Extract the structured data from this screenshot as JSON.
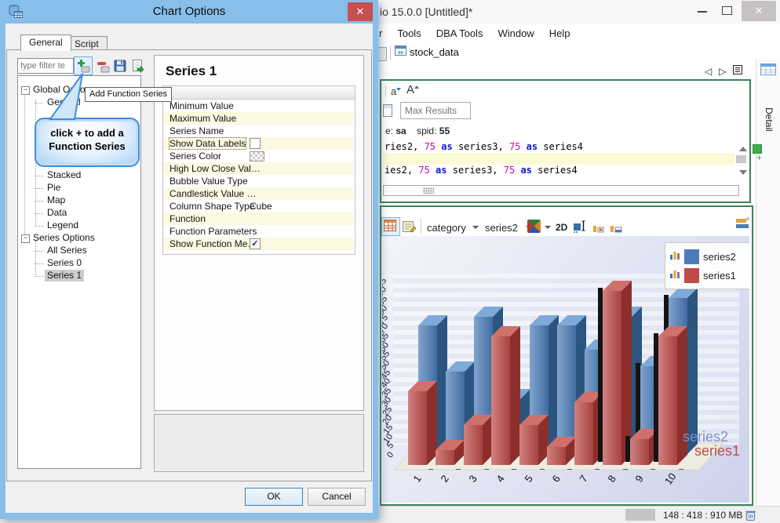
{
  "app": {
    "title": "io 15.0.0 [Untitled]*",
    "menus": [
      "r",
      "Tools",
      "DBA Tools",
      "Window",
      "Help"
    ],
    "tab_label": "stock_data",
    "detail_label": "Detail",
    "editor": {
      "font_small": "a",
      "font_big": "A",
      "max_results_placeholder": "Max Results",
      "session": {
        "prefix": "e:",
        "user": "sa",
        "spid_label": "spid:",
        "spid": "55"
      },
      "sql_lines": [
        {
          "highlight": false,
          "tokens": [
            [
              "ries2, ",
              "p"
            ],
            [
              "75",
              "n"
            ],
            [
              " ",
              "p"
            ],
            [
              "as",
              "k"
            ],
            [
              " series3, ",
              "p"
            ],
            [
              "75",
              "n"
            ],
            [
              " ",
              "p"
            ],
            [
              "as",
              "k"
            ],
            [
              " series4",
              "p"
            ]
          ]
        },
        {
          "highlight": true,
          "tokens": []
        },
        {
          "highlight": false,
          "tokens": [
            [
              "ies2, ",
              "p"
            ],
            [
              "75",
              "n"
            ],
            [
              " ",
              "p"
            ],
            [
              "as",
              "k"
            ],
            [
              " series3, ",
              "p"
            ],
            [
              "75",
              "n"
            ],
            [
              " ",
              "p"
            ],
            [
              "as",
              "k"
            ],
            [
              " series4",
              "p"
            ]
          ]
        }
      ]
    },
    "chart_toolbar": {
      "category": "category",
      "series": "series2",
      "mode2d": "2D"
    },
    "side_labels": {
      "series2": "series2",
      "series1": "series1",
      "series2_color": "#7D8FC5",
      "series1_color": "#BE4F4A"
    },
    "status": {
      "memory": "148 : 418 : 910 MB"
    }
  },
  "dialog": {
    "title": "Chart Options",
    "tabs": [
      {
        "label": "General"
      },
      {
        "label": "Script"
      }
    ],
    "filter_placeholder": "type filter te",
    "tooltip": "Add Function Series",
    "callout": {
      "line1": "click + to add a",
      "line2": "Function Series"
    },
    "tree": [
      {
        "label": "Global Options",
        "level": 0,
        "expander": true
      },
      {
        "label": "General",
        "level": 1
      },
      {
        "gap": true
      },
      {
        "label": "Stacked",
        "level": 1
      },
      {
        "label": "Pie",
        "level": 1
      },
      {
        "label": "Map",
        "level": 1
      },
      {
        "label": "Data",
        "level": 1
      },
      {
        "label": "Legend",
        "level": 1
      },
      {
        "label": "Series Options",
        "level": 0,
        "expander": true
      },
      {
        "label": "All Series",
        "level": 1
      },
      {
        "label": "Series 0",
        "level": 1
      },
      {
        "label": "Series 1",
        "level": 1,
        "selected": true
      }
    ],
    "panel": {
      "title": "Series 1",
      "properties": [
        {
          "name": "Minimum Value",
          "value": ""
        },
        {
          "name": "Maximum Value",
          "value": ""
        },
        {
          "name": "Series Name",
          "value": ""
        },
        {
          "name": "Show Data Labels",
          "type": "checkbox",
          "checked": false,
          "focused": true
        },
        {
          "name": "Series Color",
          "type": "swatch"
        },
        {
          "name": "High Low Close Val…",
          "value": ""
        },
        {
          "name": "Bubble Value Type",
          "value": ""
        },
        {
          "name": "Candlestick Value …",
          "value": ""
        },
        {
          "name": "Column Shape Type",
          "value": "Cube"
        },
        {
          "name": "Function",
          "value": ""
        },
        {
          "name": "Function Parameters",
          "value": ""
        },
        {
          "name": "Show Function Me…",
          "type": "checkbox",
          "checked": true
        }
      ]
    },
    "buttons": {
      "ok": "OK",
      "cancel": "Cancel"
    }
  },
  "chart_data": {
    "type": "bar",
    "projection": "3d",
    "title": "",
    "xlabel": "",
    "ylabel": "",
    "categories": [
      "1",
      "2",
      "3",
      "4",
      "5",
      "6",
      "7",
      "8",
      "9",
      "10"
    ],
    "series": [
      {
        "name": "series2",
        "color": "#4A7CB8",
        "color_top": "#7FA9D8",
        "color_side": "#2B5581",
        "values": [
          70,
          45,
          75,
          30,
          70,
          70,
          57,
          75,
          48,
          85
        ]
      },
      {
        "name": "series1",
        "color": "#BE4B48",
        "color_top": "#D0706B",
        "color_side": "#8C2F2C",
        "values": [
          40,
          8,
          22,
          70,
          22,
          10,
          34,
          95,
          14,
          70
        ]
      }
    ],
    "ylim": [
      0,
      95
    ],
    "ytick": 5,
    "grid": true,
    "legend_position": "top-right"
  }
}
